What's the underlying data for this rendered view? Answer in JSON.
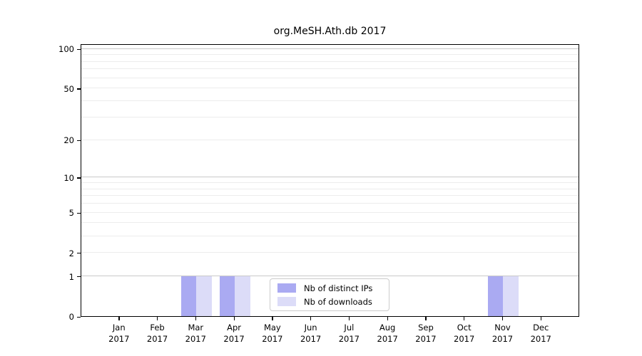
{
  "title": "org.MeSH.Ath.db 2017",
  "chart_data": {
    "type": "bar",
    "title": "org.MeSH.Ath.db 2017",
    "categories": [
      "Jan",
      "Feb",
      "Mar",
      "Apr",
      "May",
      "Jun",
      "Jul",
      "Aug",
      "Sep",
      "Oct",
      "Nov",
      "Dec"
    ],
    "category_year": "2017",
    "series": [
      {
        "name": "Nb of distinct IPs",
        "color": "#aaaaf2",
        "values": [
          0,
          0,
          1,
          1,
          0,
          0,
          0,
          0,
          0,
          0,
          1,
          0
        ]
      },
      {
        "name": "Nb of downloads",
        "color": "#dcdcf8",
        "values": [
          0,
          0,
          1,
          1,
          0,
          0,
          0,
          0,
          0,
          0,
          1,
          0
        ]
      }
    ],
    "y_ticks": [
      0,
      1,
      2,
      5,
      10,
      20,
      50,
      100
    ],
    "y_scale": "log10(1+x)",
    "ylim": [
      0,
      107
    ],
    "grid": "horizontal only",
    "grid_major_values": [
      1,
      10,
      100
    ],
    "grid_minor_values": [
      2,
      3,
      4,
      5,
      6,
      7,
      8,
      9,
      20,
      30,
      40,
      50,
      60,
      70,
      80,
      90
    ],
    "legend_position": "inside bottom-center",
    "colors": {
      "major_grid": "#c9c9c9",
      "minor_grid": "#ececec",
      "axis": "#000000",
      "background": "#ffffff"
    }
  }
}
